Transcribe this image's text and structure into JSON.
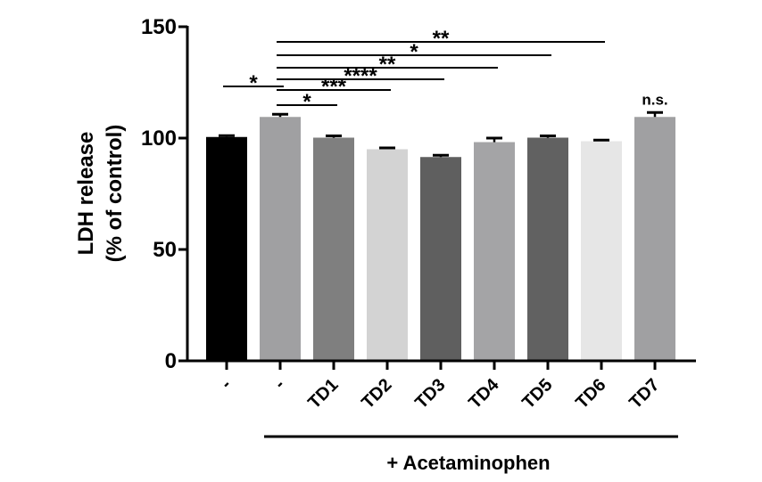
{
  "chart_data": {
    "type": "bar",
    "ylabel": [
      "LDH release",
      "(% of control)"
    ],
    "ylim": [
      0,
      150
    ],
    "yticks": [
      0,
      50,
      100,
      150
    ],
    "categories": [
      "-",
      "-",
      "TD1",
      "TD2",
      "TD3",
      "TD4",
      "TD5",
      "TD6",
      "TD7"
    ],
    "values": [
      100.5,
      109.5,
      100.2,
      95,
      91.5,
      98.2,
      100.2,
      98.6,
      109.5
    ],
    "errors": [
      0.6,
      1.2,
      0.8,
      0.6,
      0.8,
      1.8,
      0.8,
      0.5,
      2.0
    ],
    "colors": [
      "#000000",
      "#a0a0a2",
      "#7f7f7f",
      "#d3d3d3",
      "#5f5f5f",
      "#a4a4a6",
      "#616161",
      "#e6e6e6",
      "#a0a0a2"
    ],
    "group_label": "+ Acetaminophen",
    "group_span": [
      1,
      8
    ],
    "annotations": [
      {
        "from": 0,
        "to": 1,
        "text": "*"
      },
      {
        "from": 1,
        "to": 2,
        "text": "*"
      },
      {
        "from": 1,
        "to": 3,
        "text": "***"
      },
      {
        "from": 1,
        "to": 4,
        "text": "****"
      },
      {
        "from": 1,
        "to": 5,
        "text": "**"
      },
      {
        "from": 1,
        "to": 6,
        "text": "*"
      },
      {
        "from": 1,
        "to": 7,
        "text": "**"
      },
      {
        "from": 8,
        "to": 8,
        "text": "n.s."
      }
    ]
  }
}
